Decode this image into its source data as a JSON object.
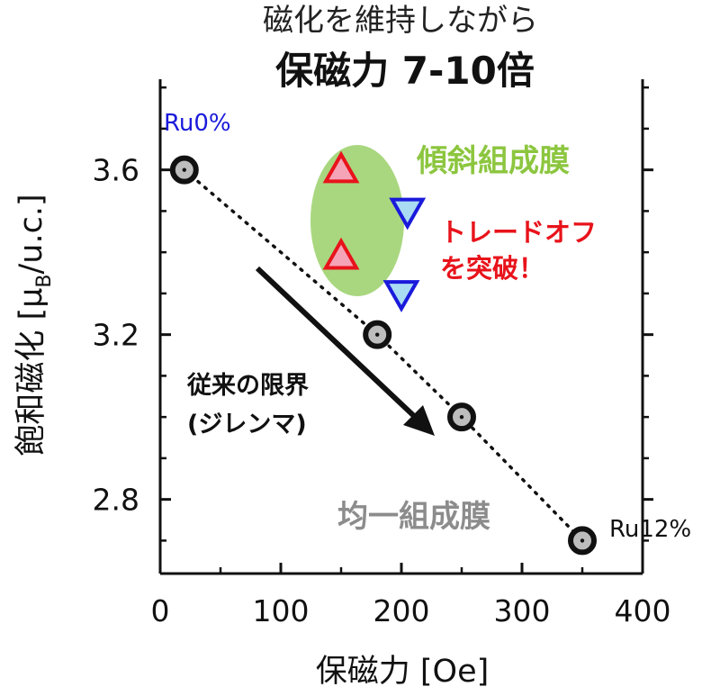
{
  "chart_data": {
    "type": "scatter",
    "title": "磁化を維持しながら",
    "subtitle": "保磁力 7-10倍",
    "xlabel": "保磁力 [Oe]",
    "ylabel_main": "飽和磁化 [μ",
    "ylabel_sub": "B",
    "ylabel_tail": "/u.c.]",
    "xlim": [
      0,
      400
    ],
    "ylim": [
      2.62,
      3.82
    ],
    "xticks": [
      0,
      100,
      200,
      300,
      400
    ],
    "xtick_labels": [
      "0",
      "100",
      "200",
      "300",
      "400"
    ],
    "yticks": [
      2.8,
      3.2,
      3.6
    ],
    "ytick_labels": [
      "2.8",
      "3.2",
      "3.6"
    ],
    "grid": false,
    "series": [
      {
        "name": "均一組成膜",
        "marker": "circle",
        "color": "#8c8c8c",
        "points": [
          {
            "x": 20,
            "y": 3.6
          },
          {
            "x": 180,
            "y": 3.2
          },
          {
            "x": 250,
            "y": 3.0
          },
          {
            "x": 350,
            "y": 2.7
          }
        ]
      },
      {
        "name": "傾斜組成膜",
        "marker": "triangle-up",
        "color": "#e8131b",
        "points": [
          {
            "x": 150,
            "y": 3.6
          },
          {
            "x": 150,
            "y": 3.39
          }
        ]
      },
      {
        "name": "傾斜組成膜",
        "marker": "triangle-down",
        "color": "#1a1adb",
        "points": [
          {
            "x": 205,
            "y": 3.5
          },
          {
            "x": 200,
            "y": 3.3
          }
        ]
      }
    ],
    "annotations": {
      "ru0": "Ru0%",
      "ru12": "Ru12%",
      "graded_label": "傾斜組成膜",
      "tradeoff_line1": "トレードオフ",
      "tradeoff_line2": "を突破！",
      "dilemma_line1": "従来の限界",
      "dilemma_line2": "(ジレンマ)",
      "uniform_label": "均一組成膜"
    },
    "colors": {
      "graded_text": "#8cc63f",
      "ellipse": "#a9d77f",
      "tradeoff_text": "#e8131b",
      "ru0_text": "#1a1adb",
      "uniform_text": "#8c8c8c",
      "up_fill": "#f5a4b8",
      "down_fill": "#a9dcf3"
    }
  }
}
